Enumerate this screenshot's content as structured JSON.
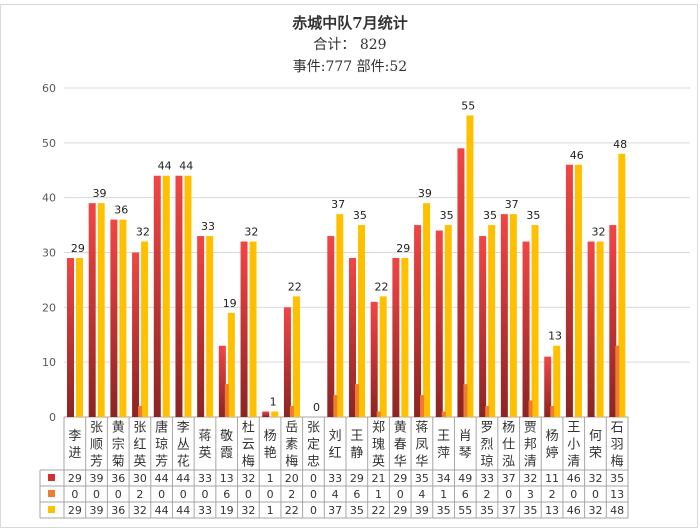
{
  "chart_data": {
    "type": "bar",
    "title": "赤城中队7月统计",
    "total_label": "合计： 829",
    "subtitle": "事件:777 部件:52",
    "ylim": [
      0,
      60
    ],
    "yticks": [
      0,
      10,
      20,
      30,
      40,
      50,
      60
    ],
    "grid": true,
    "legend": "data-table",
    "categories": [
      "李进",
      "张顺芳",
      "黄宗菊",
      "张红英",
      "唐琼芳",
      "李丛花",
      "蒋英",
      "敬霞",
      "杜云梅",
      "杨艳",
      "岳素梅",
      "张定忠",
      "刘红",
      "王静",
      "郑瑰英",
      "黄春华",
      "蒋凤华",
      "王萍",
      "肖琴",
      "罗烈琼",
      "杨仕泓",
      "贾邦清",
      "杨婷",
      "王小清",
      "何荣",
      "石羽梅"
    ],
    "series": [
      {
        "key": "red",
        "color": "#e83a3a",
        "values": [
          29,
          39,
          36,
          30,
          44,
          44,
          33,
          13,
          32,
          1,
          20,
          0,
          33,
          29,
          21,
          29,
          35,
          34,
          49,
          33,
          37,
          32,
          11,
          46,
          32,
          35
        ]
      },
      {
        "key": "orange",
        "color": "#ed7d31",
        "values": [
          0,
          0,
          0,
          2,
          0,
          0,
          0,
          6,
          0,
          0,
          2,
          0,
          4,
          6,
          1,
          0,
          4,
          1,
          6,
          2,
          0,
          3,
          2,
          0,
          0,
          13
        ]
      },
      {
        "key": "yellow",
        "color": "#ffc000",
        "values": [
          29,
          39,
          36,
          32,
          44,
          44,
          33,
          19,
          32,
          1,
          22,
          0,
          37,
          35,
          22,
          29,
          39,
          35,
          55,
          35,
          37,
          35,
          13,
          46,
          32,
          48
        ],
        "labeled": true
      }
    ]
  }
}
